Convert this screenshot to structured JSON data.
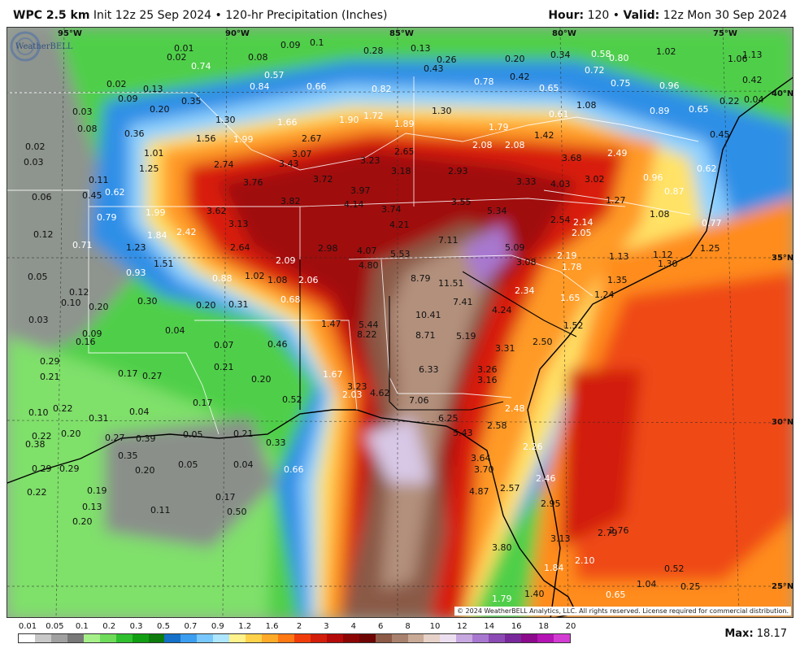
{
  "header": {
    "model": "WPC 2.5 km",
    "init": "Init 12z 25 Sep 2024",
    "separator": "•",
    "product": "120-hr Precipitation (Inches)",
    "hour_label": "Hour:",
    "hour_value": "120",
    "valid_label": "Valid:",
    "valid_value": "12z Mon 30 Sep 2024"
  },
  "map": {
    "longitude_labels": [
      "95°W",
      "90°W",
      "85°W",
      "80°W",
      "75°W"
    ],
    "latitude_labels": [
      "40°N",
      "35°N",
      "30°N",
      "25°N"
    ],
    "copyright": "© 2024 WeatherBELL Analytics, LLC. All rights reserved. License required for commercial distribution.",
    "logo_text": "WeatherBELL",
    "values": [
      {
        "t": "0.01"
      },
      {
        "t": "0.02"
      },
      {
        "t": "0.74"
      },
      {
        "t": "0.08"
      },
      {
        "t": "0.09"
      },
      {
        "t": "0.1"
      },
      {
        "t": "0.28"
      },
      {
        "t": "0.13"
      },
      {
        "t": "0.26"
      },
      {
        "t": "0.20"
      },
      {
        "t": "0.34"
      },
      {
        "t": "0.58"
      },
      {
        "t": "0.80"
      },
      {
        "t": "1.02"
      },
      {
        "t": "1.06"
      },
      {
        "t": "1.13"
      },
      {
        "t": "0.02"
      },
      {
        "t": "0.13"
      },
      {
        "t": "0.35"
      },
      {
        "t": "0.57"
      },
      {
        "t": "0.84"
      },
      {
        "t": "0.66"
      },
      {
        "t": "0.82"
      },
      {
        "t": "0.43"
      },
      {
        "t": "0.78"
      },
      {
        "t": "0.42"
      },
      {
        "t": "0.72"
      },
      {
        "t": "0.75"
      },
      {
        "t": "0.96"
      },
      {
        "t": "0.65"
      },
      {
        "t": "0.42"
      },
      {
        "t": "0.09"
      },
      {
        "t": "0.20"
      },
      {
        "t": "1.30"
      },
      {
        "t": "1.66"
      },
      {
        "t": "1.90"
      },
      {
        "t": "1.72"
      },
      {
        "t": "1.30"
      },
      {
        "t": "1.89"
      },
      {
        "t": "1.08"
      },
      {
        "t": "0.61"
      },
      {
        "t": "0.89"
      },
      {
        "t": "0.65"
      },
      {
        "t": "0.22"
      },
      {
        "t": "0.04"
      },
      {
        "t": "0.03"
      },
      {
        "t": "0.08"
      },
      {
        "t": "0.36"
      },
      {
        "t": "1.56"
      },
      {
        "t": "1.99"
      },
      {
        "t": "2.67"
      },
      {
        "t": "1.79"
      },
      {
        "t": "1.42"
      },
      {
        "t": "2.08"
      },
      {
        "t": "2.08"
      },
      {
        "t": "0.45"
      },
      {
        "t": "0.02"
      },
      {
        "t": "1.01"
      },
      {
        "t": "3.07"
      },
      {
        "t": "2.65"
      },
      {
        "t": "3.68"
      },
      {
        "t": "2.49"
      },
      {
        "t": "0.03"
      },
      {
        "t": "1.25"
      },
      {
        "t": "2.74"
      },
      {
        "t": "3.43"
      },
      {
        "t": "3.23"
      },
      {
        "t": "3.18"
      },
      {
        "t": "2.93"
      },
      {
        "t": "0.62"
      },
      {
        "t": "0.11"
      },
      {
        "t": "0.62"
      },
      {
        "t": "3.76"
      },
      {
        "t": "3.72"
      },
      {
        "t": "3.97"
      },
      {
        "t": "3.33"
      },
      {
        "t": "4.03"
      },
      {
        "t": "3.02"
      },
      {
        "t": "0.96"
      },
      {
        "t": "0.87"
      },
      {
        "t": "0.06"
      },
      {
        "t": "0.45"
      },
      {
        "t": "3.82"
      },
      {
        "t": "4.14"
      },
      {
        "t": "3.55"
      },
      {
        "t": "1.27"
      },
      {
        "t": "1.99"
      },
      {
        "t": "3.62"
      },
      {
        "t": "3.74"
      },
      {
        "t": "5.34"
      },
      {
        "t": "1.08"
      },
      {
        "t": "0.79"
      },
      {
        "t": "3.13"
      },
      {
        "t": "4.21"
      },
      {
        "t": "2.54"
      },
      {
        "t": "2.14"
      },
      {
        "t": "2.05"
      },
      {
        "t": "0.77"
      },
      {
        "t": "0.12"
      },
      {
        "t": "1.84"
      },
      {
        "t": "2.42"
      },
      {
        "t": "7.11"
      },
      {
        "t": "0.71"
      },
      {
        "t": "1.23"
      },
      {
        "t": "2.64"
      },
      {
        "t": "2.98"
      },
      {
        "t": "4.07"
      },
      {
        "t": "5.53"
      },
      {
        "t": "5.09"
      },
      {
        "t": "2.19"
      },
      {
        "t": "1.13"
      },
      {
        "t": "1.12"
      },
      {
        "t": "1.25"
      },
      {
        "t": "1.51"
      },
      {
        "t": "2.09"
      },
      {
        "t": "4.80"
      },
      {
        "t": "3.08"
      },
      {
        "t": "1.78"
      },
      {
        "t": "1.30"
      },
      {
        "t": "0.05"
      },
      {
        "t": "0.93"
      },
      {
        "t": "0.88"
      },
      {
        "t": "1.02"
      },
      {
        "t": "1.08"
      },
      {
        "t": "2.06"
      },
      {
        "t": "8.79"
      },
      {
        "t": "11.51"
      },
      {
        "t": "1.35"
      },
      {
        "t": "0.12"
      },
      {
        "t": "2.34"
      },
      {
        "t": "0.10"
      },
      {
        "t": "0.30"
      },
      {
        "t": "0.20"
      },
      {
        "t": "0.31"
      },
      {
        "t": "0.68"
      },
      {
        "t": "1.65"
      },
      {
        "t": "1.24"
      },
      {
        "t": "0.20"
      },
      {
        "t": "10.41"
      },
      {
        "t": "7.41"
      },
      {
        "t": "4.24"
      },
      {
        "t": "0.03"
      },
      {
        "t": "1.47"
      },
      {
        "t": "5.44"
      },
      {
        "t": "1.52"
      },
      {
        "t": "0.09"
      },
      {
        "t": "0.04"
      },
      {
        "t": "0.16"
      },
      {
        "t": "0.07"
      },
      {
        "t": "8.22"
      },
      {
        "t": "8.71"
      },
      {
        "t": "5.19"
      },
      {
        "t": "0.46"
      },
      {
        "t": "2.50"
      },
      {
        "t": "3.31"
      },
      {
        "t": "0.29"
      },
      {
        "t": "0.21"
      },
      {
        "t": "0.17"
      },
      {
        "t": "0.27"
      },
      {
        "t": "0.21"
      },
      {
        "t": "6.33"
      },
      {
        "t": "3.26"
      },
      {
        "t": "1.67"
      },
      {
        "t": "3.16"
      },
      {
        "t": "0.20"
      },
      {
        "t": "3.23"
      },
      {
        "t": "2.03"
      },
      {
        "t": "4.62"
      },
      {
        "t": "0.17"
      },
      {
        "t": "0.52"
      },
      {
        "t": "7.06"
      },
      {
        "t": "0.22"
      },
      {
        "t": "0.04"
      },
      {
        "t": "0.10"
      },
      {
        "t": "0.31"
      },
      {
        "t": "2.48"
      },
      {
        "t": "6.25"
      },
      {
        "t": "0.20"
      },
      {
        "t": "2.58"
      },
      {
        "t": "0.22"
      },
      {
        "t": "0.27"
      },
      {
        "t": "0.39"
      },
      {
        "t": "0.05"
      },
      {
        "t": "0.21"
      },
      {
        "t": "0.33"
      },
      {
        "t": "5.43"
      },
      {
        "t": "0.38"
      },
      {
        "t": "2.26"
      },
      {
        "t": "0.35"
      },
      {
        "t": "3.64"
      },
      {
        "t": "0.29"
      },
      {
        "t": "0.29"
      },
      {
        "t": "0.20"
      },
      {
        "t": "0.05"
      },
      {
        "t": "0.04"
      },
      {
        "t": "0.66"
      },
      {
        "t": "3.70"
      },
      {
        "t": "2.46"
      },
      {
        "t": "0.22"
      },
      {
        "t": "0.19"
      },
      {
        "t": "0.17"
      },
      {
        "t": "4.87"
      },
      {
        "t": "2.57"
      },
      {
        "t": "0.13"
      },
      {
        "t": "0.11"
      },
      {
        "t": "0.50"
      },
      {
        "t": "2.95"
      },
      {
        "t": "0.20"
      },
      {
        "t": "2.79"
      },
      {
        "t": "2.76"
      },
      {
        "t": "3.13"
      },
      {
        "t": "3.80"
      },
      {
        "t": "1.84"
      },
      {
        "t": "2.10"
      },
      {
        "t": "0.52"
      },
      {
        "t": "1.04"
      },
      {
        "t": "0.25"
      },
      {
        "t": "1.79"
      },
      {
        "t": "1.40"
      },
      {
        "t": "0.65"
      }
    ]
  },
  "legend": {
    "labels": [
      "0.01",
      "0.05",
      "0.1",
      "0.2",
      "0.3",
      "0.5",
      "0.7",
      "0.9",
      "1.2",
      "1.6",
      "2",
      "3",
      "4",
      "6",
      "8",
      "10",
      "12",
      "14",
      "16",
      "18",
      "20"
    ],
    "colors": [
      "#ffffff",
      "#c8c8c8",
      "#a0a0a0",
      "#787878",
      "#a6f08a",
      "#6edb5a",
      "#2fbf2f",
      "#129e12",
      "#0d7c0d",
      "#1470c8",
      "#3c9ef0",
      "#78c8ff",
      "#aee6ff",
      "#fff28c",
      "#ffd24a",
      "#ffaa28",
      "#ff7814",
      "#f03c0a",
      "#d21e0a",
      "#b40a0a",
      "#8c0505",
      "#6e0505",
      "#8c5a46",
      "#a8826e",
      "#c8aa96",
      "#e6d2c8",
      "#ece0f0",
      "#c8a8e0",
      "#a878d0",
      "#8c4bb4",
      "#78289a",
      "#8c0a8c",
      "#b414b4",
      "#d23cd2"
    ],
    "max_label": "Max:",
    "max_value": "18.17"
  }
}
